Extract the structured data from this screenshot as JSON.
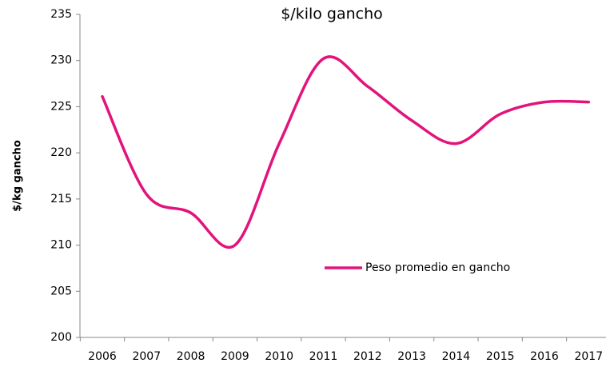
{
  "chart_data": {
    "type": "line",
    "title": "$/kilo gancho",
    "y_label": "$/kg gancho",
    "categories": [
      "2006",
      "2007",
      "2008",
      "2009",
      "2010",
      "2011",
      "2012",
      "2013",
      "2014",
      "2015",
      "2016",
      "2017"
    ],
    "series": [
      {
        "name": "Peso promedio en gancho",
        "color": "#e2147c",
        "values": [
          226.1,
          215.5,
          213.5,
          210.0,
          221.0,
          230.2,
          227.2,
          223.5,
          221.0,
          224.2,
          225.5,
          225.5
        ]
      }
    ],
    "ylim": [
      200,
      235
    ],
    "yticks": [
      200,
      205,
      210,
      215,
      220,
      225,
      230,
      235
    ],
    "grid": false,
    "smooth": true
  }
}
